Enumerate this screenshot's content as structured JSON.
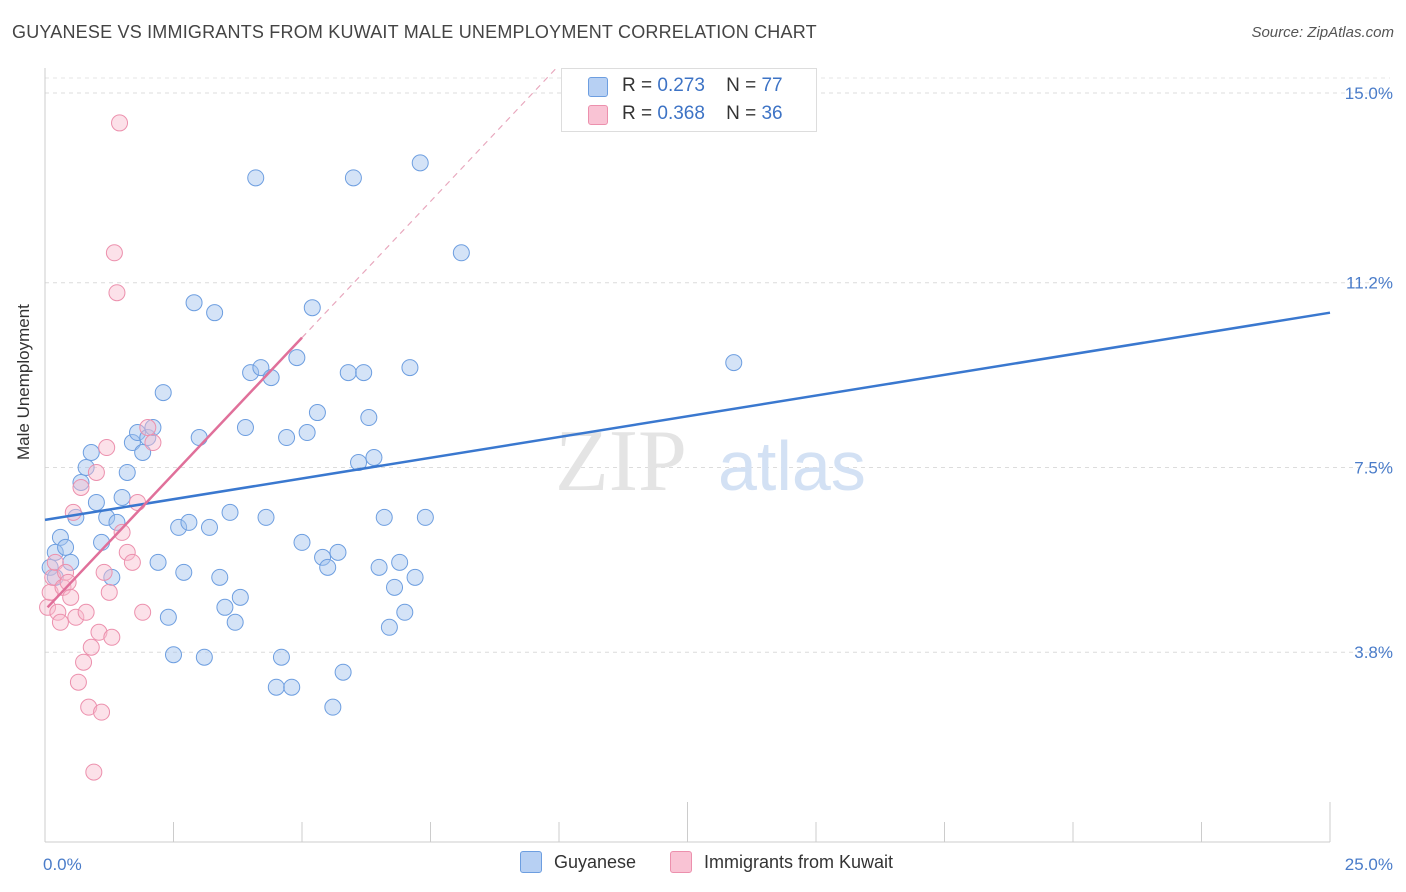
{
  "title": "GUYANESE VS IMMIGRANTS FROM KUWAIT MALE UNEMPLOYMENT CORRELATION CHART",
  "source": "Source: ZipAtlas.com",
  "watermark": {
    "zip": "ZIP",
    "atlas": "atlas"
  },
  "legend": {
    "r_label": "R =",
    "n_label": "N =",
    "rows": [
      {
        "r": "0.273",
        "n": "77",
        "color": "#b7d0f3",
        "border": "#6d9ee0"
      },
      {
        "r": "0.368",
        "n": "36",
        "color": "#f9c3d4",
        "border": "#ec90ad"
      }
    ]
  },
  "bottom_legend": [
    {
      "label": "Guyanese",
      "color": "#b7d0f3",
      "border": "#6d9ee0"
    },
    {
      "label": "Immigrants from Kuwait",
      "color": "#f9c3d4",
      "border": "#ec90ad"
    }
  ],
  "chart_data": {
    "type": "scatter",
    "title": "GUYANESE VS IMMIGRANTS FROM KUWAIT MALE UNEMPLOYMENT CORRELATION CHART",
    "xlabel": "",
    "ylabel": "Male Unemployment",
    "xlim": [
      0,
      25
    ],
    "ylim": [
      0,
      15.5
    ],
    "x_tick_labels": [
      "0.0%",
      "25.0%"
    ],
    "y_ticks": [
      3.8,
      7.5,
      11.2,
      15.0
    ],
    "y_tick_labels": [
      "3.8%",
      "7.5%",
      "11.2%",
      "15.0%"
    ],
    "colors": {
      "guyanese": "#3a78cf",
      "kuwait": "#e0709a"
    },
    "series": [
      {
        "name": "Guyanese",
        "trend": {
          "x": [
            0,
            25
          ],
          "y": [
            6.45,
            10.6
          ]
        },
        "points": [
          [
            0.1,
            5.5
          ],
          [
            0.2,
            5.8
          ],
          [
            0.3,
            6.1
          ],
          [
            0.4,
            5.9
          ],
          [
            0.5,
            5.6
          ],
          [
            0.2,
            5.3
          ],
          [
            0.6,
            6.5
          ],
          [
            0.7,
            7.2
          ],
          [
            0.8,
            7.5
          ],
          [
            0.9,
            7.8
          ],
          [
            1.0,
            6.8
          ],
          [
            1.1,
            6.0
          ],
          [
            1.2,
            6.5
          ],
          [
            1.3,
            5.3
          ],
          [
            1.4,
            6.4
          ],
          [
            1.5,
            6.9
          ],
          [
            1.6,
            7.4
          ],
          [
            1.7,
            8.0
          ],
          [
            1.8,
            8.2
          ],
          [
            1.9,
            7.8
          ],
          [
            2.0,
            8.1
          ],
          [
            2.1,
            8.3
          ],
          [
            2.2,
            5.6
          ],
          [
            2.3,
            9.0
          ],
          [
            2.4,
            4.5
          ],
          [
            2.5,
            3.75
          ],
          [
            2.6,
            6.3
          ],
          [
            2.7,
            5.4
          ],
          [
            2.8,
            6.4
          ],
          [
            2.9,
            10.8
          ],
          [
            3.0,
            8.1
          ],
          [
            3.1,
            3.7
          ],
          [
            3.2,
            6.3
          ],
          [
            3.3,
            10.6
          ],
          [
            3.4,
            5.3
          ],
          [
            3.5,
            4.7
          ],
          [
            3.6,
            6.6
          ],
          [
            3.7,
            4.4
          ],
          [
            3.8,
            4.9
          ],
          [
            3.9,
            8.3
          ],
          [
            4.0,
            9.4
          ],
          [
            4.1,
            13.3
          ],
          [
            4.2,
            9.5
          ],
          [
            4.3,
            6.5
          ],
          [
            4.4,
            9.3
          ],
          [
            4.5,
            3.1
          ],
          [
            4.6,
            3.7
          ],
          [
            4.7,
            8.1
          ],
          [
            4.8,
            3.1
          ],
          [
            4.9,
            9.7
          ],
          [
            5.0,
            6.0
          ],
          [
            5.1,
            8.2
          ],
          [
            5.2,
            10.7
          ],
          [
            5.3,
            8.6
          ],
          [
            5.4,
            5.7
          ],
          [
            5.5,
            5.5
          ],
          [
            5.6,
            2.7
          ],
          [
            5.7,
            5.8
          ],
          [
            5.8,
            3.4
          ],
          [
            5.9,
            9.4
          ],
          [
            6.0,
            13.3
          ],
          [
            6.1,
            7.6
          ],
          [
            6.2,
            9.4
          ],
          [
            6.3,
            8.5
          ],
          [
            6.4,
            7.7
          ],
          [
            6.5,
            5.5
          ],
          [
            6.6,
            6.5
          ],
          [
            6.7,
            4.3
          ],
          [
            6.8,
            5.1
          ],
          [
            6.9,
            5.6
          ],
          [
            7.0,
            4.6
          ],
          [
            7.1,
            9.5
          ],
          [
            7.2,
            5.3
          ],
          [
            7.3,
            13.6
          ],
          [
            7.4,
            6.5
          ],
          [
            8.1,
            11.8
          ],
          [
            13.4,
            9.6
          ]
        ]
      },
      {
        "name": "Immigrants from Kuwait",
        "trend": {
          "x": [
            0.05,
            5.0
          ],
          "y": [
            4.7,
            10.1
          ]
        },
        "points": [
          [
            0.05,
            4.7
          ],
          [
            0.1,
            5.0
          ],
          [
            0.15,
            5.3
          ],
          [
            0.2,
            5.6
          ],
          [
            0.25,
            4.6
          ],
          [
            0.3,
            4.4
          ],
          [
            0.35,
            5.1
          ],
          [
            0.4,
            5.4
          ],
          [
            0.45,
            5.2
          ],
          [
            0.5,
            4.9
          ],
          [
            0.55,
            6.6
          ],
          [
            0.6,
            4.5
          ],
          [
            0.65,
            3.2
          ],
          [
            0.7,
            7.1
          ],
          [
            0.75,
            3.6
          ],
          [
            0.8,
            4.6
          ],
          [
            0.85,
            2.7
          ],
          [
            0.9,
            3.9
          ],
          [
            0.95,
            1.4
          ],
          [
            1.0,
            7.4
          ],
          [
            1.05,
            4.2
          ],
          [
            1.1,
            2.6
          ],
          [
            1.15,
            5.4
          ],
          [
            1.2,
            7.9
          ],
          [
            1.25,
            5.0
          ],
          [
            1.3,
            4.1
          ],
          [
            1.35,
            11.8
          ],
          [
            1.4,
            11.0
          ],
          [
            1.45,
            14.4
          ],
          [
            1.5,
            6.2
          ],
          [
            1.6,
            5.8
          ],
          [
            1.7,
            5.6
          ],
          [
            1.8,
            6.8
          ],
          [
            1.9,
            4.6
          ],
          [
            2.0,
            8.3
          ],
          [
            2.1,
            8.0
          ]
        ]
      }
    ]
  }
}
